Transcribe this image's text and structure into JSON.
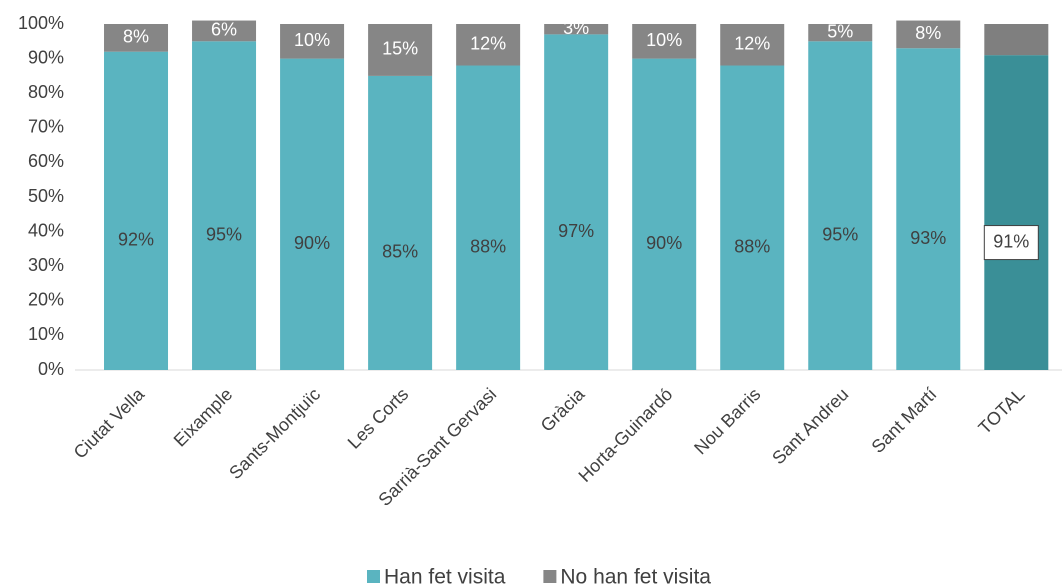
{
  "chart_data": {
    "type": "stacked_bar",
    "categories": [
      "Ciutat Vella",
      "Eixample",
      "Sants-Montjuïc",
      "Les Corts",
      "Sarrià-Sant Gervasi",
      "Gràcia",
      "Horta-Guinardó",
      "Nou Barris",
      "Sant Andreu",
      "Sant Martí",
      "TOTAL"
    ],
    "series": [
      {
        "name": "Han fet visita",
        "color": "#5ab4c0",
        "colors": [
          "#5ab4c0",
          "#5ab4c0",
          "#5ab4c0",
          "#5ab4c0",
          "#5ab4c0",
          "#5ab4c0",
          "#5ab4c0",
          "#5ab4c0",
          "#5ab4c0",
          "#5ab4c0",
          "#3a8f97"
        ],
        "values": [
          92,
          95,
          90,
          85,
          88,
          97,
          90,
          88,
          95,
          93,
          91
        ],
        "value_labels": [
          "92%",
          "95%",
          "90%",
          "85%",
          "88%",
          "97%",
          "90%",
          "88%",
          "95%",
          "93%",
          "91%"
        ]
      },
      {
        "name": "No han fet visita",
        "color": "#868686",
        "colors": [
          "#868686",
          "#868686",
          "#868686",
          "#868686",
          "#868686",
          "#868686",
          "#868686",
          "#868686",
          "#868686",
          "#868686",
          "#7f7f7f"
        ],
        "values": [
          8,
          6,
          10,
          15,
          12,
          3,
          10,
          12,
          5,
          8,
          9
        ],
        "value_labels": [
          "8%",
          "6%",
          "10%",
          "15%",
          "12%",
          "3%",
          "10%",
          "12%",
          "5%",
          "8%",
          null
        ]
      }
    ],
    "ylim": [
      0,
      100
    ],
    "yticks": [
      {
        "value": 0,
        "label": "0%"
      },
      {
        "value": 10,
        "label": "10%"
      },
      {
        "value": 20,
        "label": "20%"
      },
      {
        "value": 30,
        "label": "30%"
      },
      {
        "value": 40,
        "label": "40%"
      },
      {
        "value": 50,
        "label": "50%"
      },
      {
        "value": 60,
        "label": "60%"
      },
      {
        "value": 70,
        "label": "70%"
      },
      {
        "value": 80,
        "label": "80%"
      },
      {
        "value": 90,
        "label": "90%"
      },
      {
        "value": 100,
        "label": "100%"
      }
    ],
    "legend": "bottom"
  }
}
